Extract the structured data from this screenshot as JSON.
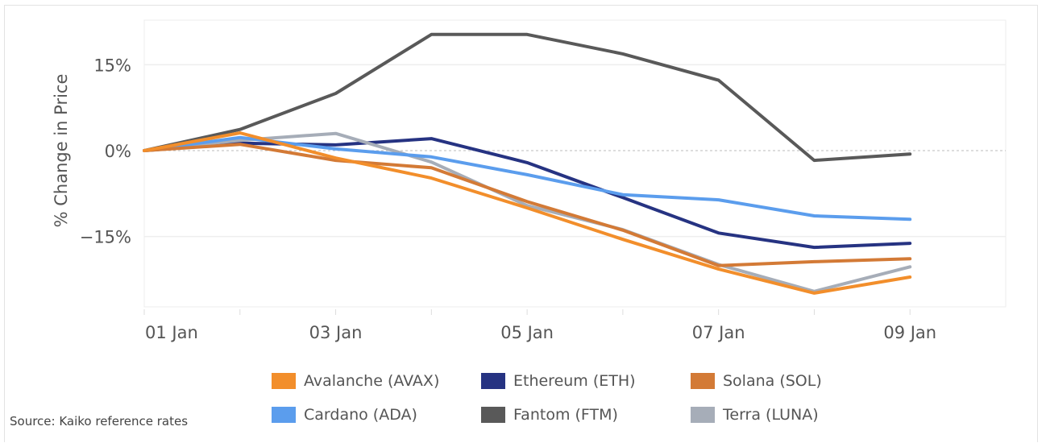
{
  "chart_data": {
    "type": "line",
    "title": "",
    "xlabel": "",
    "ylabel": "% Change in Price",
    "x": [
      "01 Jan",
      "02 Jan",
      "03 Jan",
      "04 Jan",
      "05 Jan",
      "06 Jan",
      "07 Jan",
      "08 Jan",
      "09 Jan"
    ],
    "xticks": [
      "01 Jan",
      "03 Jan",
      "05 Jan",
      "07 Jan",
      "09 Jan"
    ],
    "xlim": [
      "01 Jan",
      "10 Jan"
    ],
    "yticks": [
      15,
      0,
      -15
    ],
    "ytick_labels": [
      "15%",
      "0%",
      "−15%"
    ],
    "ylim": [
      -27.3,
      22.8
    ],
    "grid": true,
    "zero_line": "dashed",
    "legend_position": "bottom",
    "series": [
      {
        "name": "Avalanche (AVAX)",
        "color": "#f28e2b",
        "values": [
          0,
          3.1,
          -1.3,
          -4.8,
          -10.0,
          -15.5,
          -20.7,
          -24.9,
          -22.1
        ]
      },
      {
        "name": "Ethereum (ETH)",
        "color": "#263382",
        "values": [
          0,
          1.3,
          1.0,
          2.1,
          -2.1,
          -8.2,
          -14.4,
          -16.9,
          -16.2
        ]
      },
      {
        "name": "Solana (SOL)",
        "color": "#d37a36",
        "values": [
          0,
          1.1,
          -1.7,
          -3.0,
          -8.9,
          -13.9,
          -20.1,
          -19.4,
          -18.9
        ]
      },
      {
        "name": "Cardano (ADA)",
        "color": "#5b9ded",
        "values": [
          0,
          2.3,
          0.3,
          -1.1,
          -4.2,
          -7.7,
          -8.6,
          -11.4,
          -12.0
        ]
      },
      {
        "name": "Fantom (FTM)",
        "color": "#595959",
        "values": [
          0,
          3.7,
          10.0,
          20.3,
          20.3,
          16.9,
          12.3,
          -1.7,
          -0.6
        ]
      },
      {
        "name": "Terra (LUNA)",
        "color": "#a6adb8",
        "values": [
          0,
          1.8,
          3.0,
          -2.0,
          -9.6,
          -13.8,
          -19.9,
          -24.6,
          -20.3
        ]
      }
    ],
    "draw_order": [
      4,
      1,
      5,
      3,
      2,
      0
    ]
  },
  "source": "Source: Kaiko reference rates"
}
